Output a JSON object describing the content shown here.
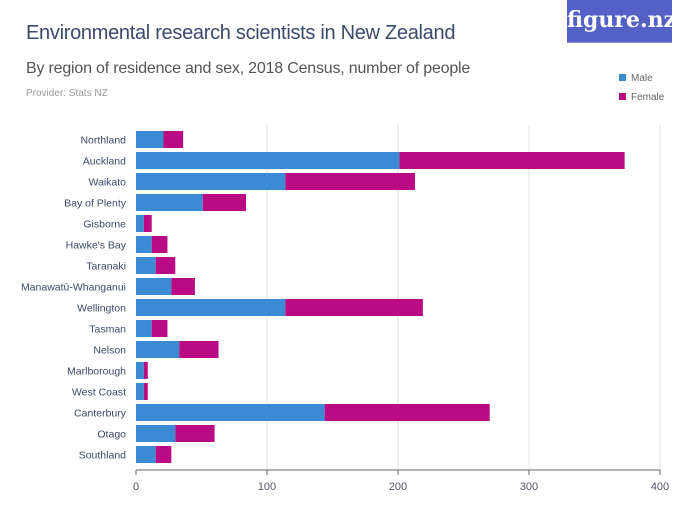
{
  "logo": "figure.nz",
  "chart_data": {
    "type": "bar",
    "orientation": "horizontal",
    "stacked": true,
    "title": "Environmental research scientists in New Zealand",
    "subtitle": "By region of residence and sex, 2018 Census, number of people",
    "provider": "Provider: Stats NZ",
    "categories": [
      "Northland",
      "Auckland",
      "Waikato",
      "Bay of Plenty",
      "Gisborne",
      "Hawke's Bay",
      "Taranaki",
      "Manawatū-Whanganui",
      "Wellington",
      "Tasman",
      "Nelson",
      "Marlborough",
      "West Coast",
      "Canterbury",
      "Otago",
      "Southland"
    ],
    "series": [
      {
        "name": "Male",
        "color": "#3b8bd4",
        "values": [
          21,
          201,
          114,
          51,
          6,
          12,
          15,
          27,
          114,
          12,
          33,
          6,
          6,
          144,
          30,
          15
        ]
      },
      {
        "name": "Female",
        "color": "#b90b84",
        "values": [
          15,
          172,
          99,
          33,
          6,
          12,
          15,
          18,
          105,
          12,
          30,
          3,
          3,
          126,
          30,
          12
        ]
      }
    ],
    "xlim": [
      0,
      400
    ],
    "xticks": [
      "0",
      "100",
      "200",
      "300",
      "400"
    ],
    "grid": true,
    "legend": "top-right"
  }
}
